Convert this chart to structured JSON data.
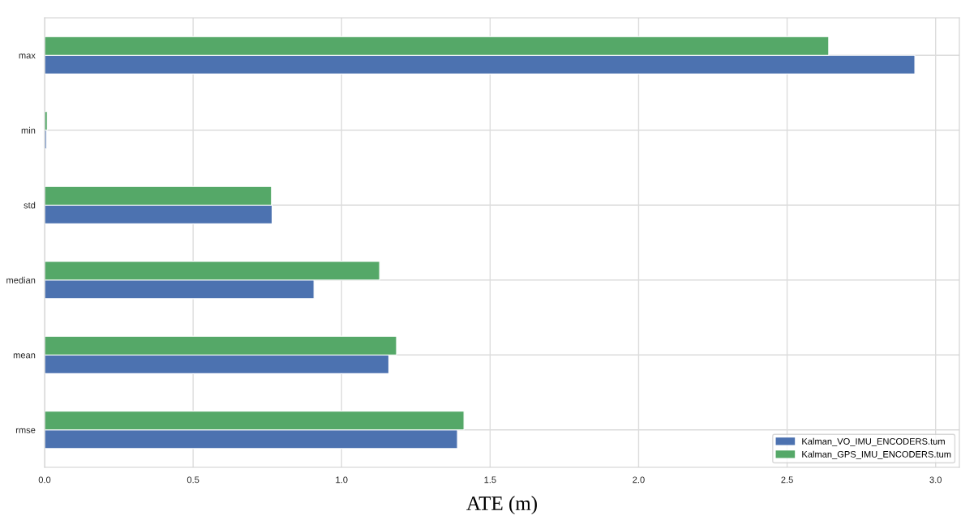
{
  "chart_data": {
    "type": "bar",
    "orientation": "horizontal",
    "xlabel": "ATE (m)",
    "categories": [
      "max",
      "min",
      "std",
      "median",
      "mean",
      "rmse"
    ],
    "series": [
      {
        "name": "Kalman_VO_IMU_ENCODERS.tum",
        "color": "#4c72b0",
        "values": [
          2.93,
          0.006,
          0.766,
          0.907,
          1.159,
          1.39
        ]
      },
      {
        "name": "Kalman_GPS_IMU_ENCODERS.tum",
        "color": "#55a868",
        "values": [
          2.64,
          0.009,
          0.764,
          1.128,
          1.185,
          1.412
        ]
      }
    ],
    "xlim": [
      0,
      3.08
    ],
    "xticks": [
      {
        "value": 0,
        "label": "0.0"
      },
      0.5,
      {
        "value": 1,
        "label": "1.0"
      },
      1.5,
      {
        "value": 2,
        "label": "2.0"
      },
      2.5,
      {
        "value": 3,
        "label": "3.0"
      }
    ],
    "grid": true,
    "legend": "bottom right"
  }
}
